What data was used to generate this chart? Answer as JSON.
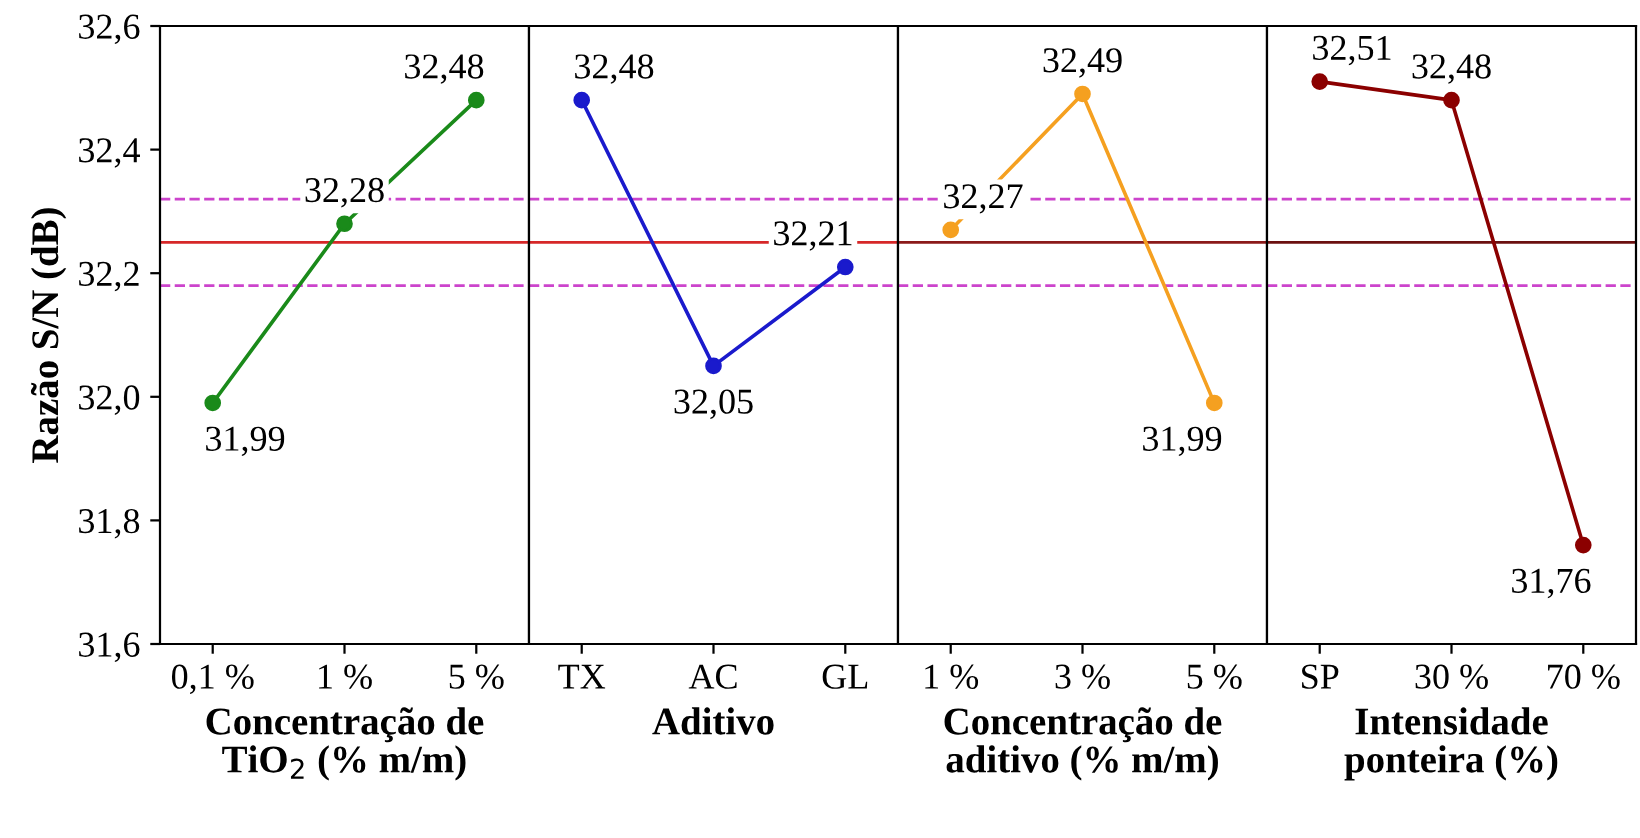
{
  "chart_data": [
    {
      "type": "line",
      "categories": [
        "0,1 %",
        "1 %",
        "5 %"
      ],
      "xlabel": "Concentração de\nTiO$_{2}$ (% m/m)",
      "ylabel": "Razão S/N (dB)",
      "series": [
        {
          "color": "#1a8a1a",
          "values": [
            31.99,
            32.28,
            32.48
          ],
          "value_labels": [
            "31,99",
            "32,28",
            "32,48"
          ]
        }
      ],
      "ylim": [
        31.6,
        32.6
      ],
      "yticks": [
        {
          "value": 31.6,
          "label": "31,6"
        },
        {
          "value": 31.8,
          "label": "31,8"
        },
        {
          "value": 32.0,
          "label": "32,0"
        },
        {
          "value": 32.2,
          "label": "32,2"
        },
        {
          "value": 32.4,
          "label": "32,4"
        },
        {
          "value": 32.6,
          "label": "32,6"
        }
      ],
      "marker": "circle",
      "line_style": "solid",
      "ref_lines": [
        {
          "axis": "y",
          "value": 32.25,
          "color": "#d62728",
          "line_style": "solid"
        },
        {
          "axis": "y",
          "value": 32.32,
          "color": "#cc44cc",
          "line_style": "dashed"
        },
        {
          "axis": "y",
          "value": 32.18,
          "color": "#cc44cc",
          "line_style": "dashed"
        }
      ]
    },
    {
      "type": "line",
      "categories": [
        "TX",
        "AC",
        "GL"
      ],
      "xlabel": "Aditivo",
      "series": [
        {
          "color": "#1a1acc",
          "values": [
            32.48,
            32.05,
            32.21
          ],
          "value_labels": [
            "32,48",
            "32,05",
            "32,21"
          ]
        }
      ],
      "ylim": [
        31.6,
        32.6
      ],
      "tick_labels": "x",
      "marker": "circle",
      "line_style": "solid",
      "ref_lines": [
        {
          "axis": "y",
          "value": 32.25,
          "color": "#d62728",
          "line_style": "solid"
        },
        {
          "axis": "y",
          "value": 32.32,
          "color": "#cc44cc",
          "line_style": "dashed"
        },
        {
          "axis": "y",
          "value": 32.18,
          "color": "#cc44cc",
          "line_style": "dashed"
        }
      ]
    },
    {
      "type": "line",
      "categories": [
        "1 %",
        "3 %",
        "5 %"
      ],
      "xlabel": "Concentração de\naditivo (% m/m)",
      "series": [
        {
          "color": "#f5a020",
          "values": [
            32.27,
            32.49,
            31.99
          ],
          "value_labels": [
            "32,27",
            "32,49",
            "31,99"
          ]
        }
      ],
      "ylim": [
        31.6,
        32.6
      ],
      "tick_labels": "x",
      "marker": "circle",
      "line_style": "solid",
      "ref_lines": [
        {
          "axis": "y",
          "value": 32.25,
          "color": "#8b1a1a",
          "line_style": "solid"
        },
        {
          "axis": "y",
          "value": 32.32,
          "color": "#cc44cc",
          "line_style": "dashed"
        },
        {
          "axis": "y",
          "value": 32.18,
          "color": "#cc44cc",
          "line_style": "dashed"
        }
      ]
    },
    {
      "type": "line",
      "categories": [
        "SP",
        "30 %",
        "70 %"
      ],
      "xlabel": "Intensidade\nponteira (%)",
      "series": [
        {
          "color": "#8b0000",
          "values": [
            32.51,
            32.48,
            31.76
          ],
          "value_labels": [
            "32,51",
            "32,48",
            "31,76"
          ]
        }
      ],
      "ylim": [
        31.6,
        32.6
      ],
      "tick_labels": "x",
      "marker": "circle",
      "line_style": "solid",
      "ref_lines": [
        {
          "axis": "y",
          "value": 32.25,
          "color": "#6b1010",
          "line_style": "solid"
        },
        {
          "axis": "y",
          "value": 32.32,
          "color": "#cc44cc",
          "line_style": "dashed"
        },
        {
          "axis": "y",
          "value": 32.18,
          "color": "#cc44cc",
          "line_style": "dashed"
        }
      ]
    }
  ]
}
